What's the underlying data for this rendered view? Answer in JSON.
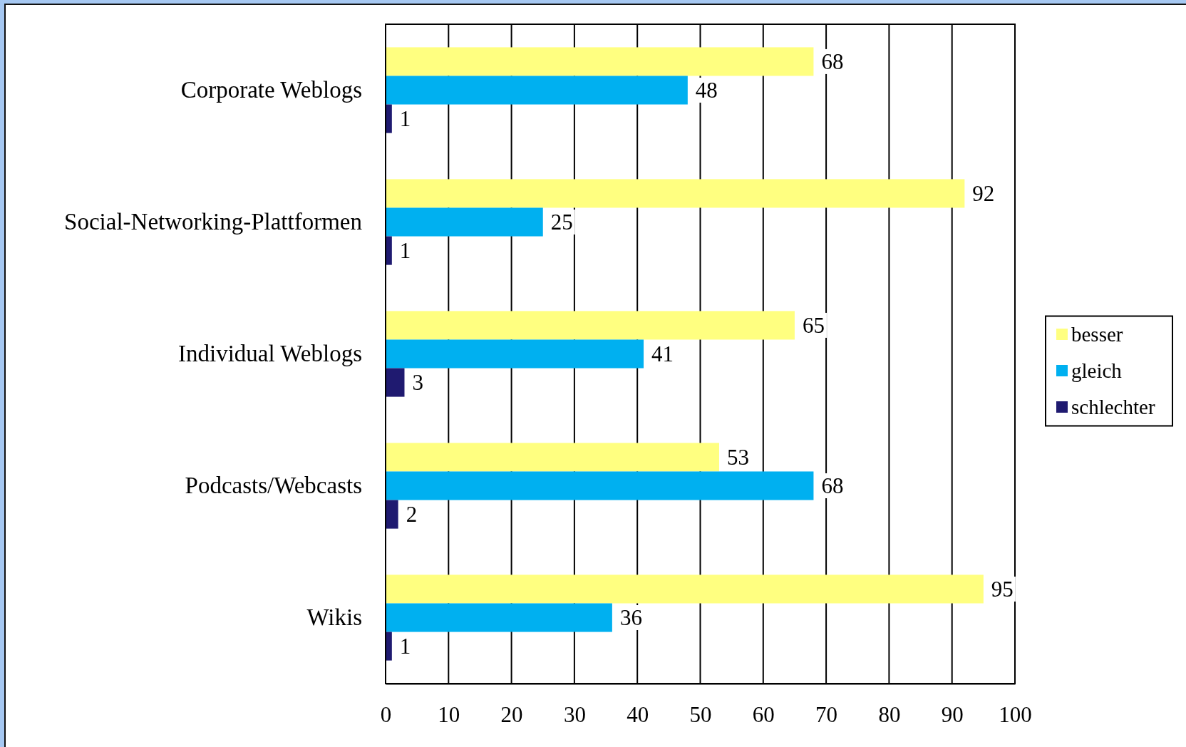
{
  "chart_data": {
    "type": "bar",
    "orientation": "horizontal",
    "categories": [
      "Corporate Weblogs",
      "Social-Networking-Plattformen",
      "Individual Weblogs",
      "Podcasts/Webcasts",
      "Wikis"
    ],
    "series": [
      {
        "name": "besser",
        "color": "#ffff80",
        "values": [
          68,
          92,
          65,
          53,
          95
        ]
      },
      {
        "name": "gleich",
        "color": "#00b0f0",
        "values": [
          48,
          25,
          41,
          68,
          36
        ]
      },
      {
        "name": "schlechter",
        "color": "#1f1a70",
        "values": [
          1,
          1,
          3,
          2,
          1
        ]
      }
    ],
    "xlim": [
      0,
      100
    ],
    "xticks": [
      0,
      10,
      20,
      30,
      40,
      50,
      60,
      70,
      80,
      90,
      100
    ],
    "grid": "x",
    "legend": "right",
    "data_labels": true
  }
}
